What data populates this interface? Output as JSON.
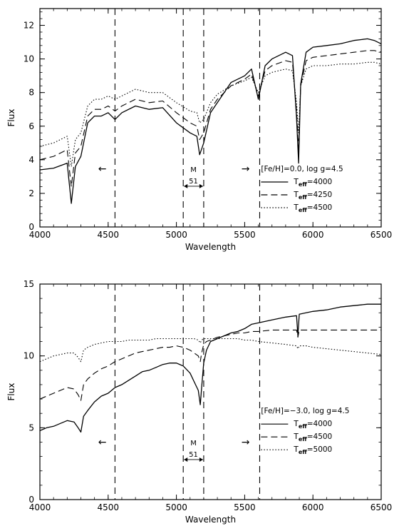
{
  "chart_data": [
    {
      "type": "line",
      "xlabel": "Wavelength",
      "ylabel": "Flux",
      "xlim": [
        4000,
        6500
      ],
      "ylim": [
        0,
        13
      ],
      "xticks": [
        "4000",
        "4500",
        "5000",
        "5500",
        "6000",
        "6500"
      ],
      "yticks": [
        "0",
        "2",
        "4",
        "6",
        "8",
        "10",
        "12"
      ],
      "legend_title": "[Fe/H]=0.0, log g=4.5",
      "legend_position": "center-right",
      "vlines": [
        4550,
        5050,
        5200,
        5610
      ],
      "annotations": {
        "left_arrow": "←",
        "right_arrow": "→",
        "band_name": "M",
        "band_width": "51"
      },
      "series": [
        {
          "name": "T_eff=4000",
          "label_sub": "eff",
          "label_value": "=4000",
          "style": "solid",
          "x": [
            4000,
            4100,
            4200,
            4230,
            4260,
            4300,
            4350,
            4400,
            4450,
            4500,
            4550,
            4600,
            4700,
            4800,
            4900,
            5000,
            5100,
            5150,
            5170,
            5200,
            5250,
            5300,
            5400,
            5500,
            5550,
            5600,
            5650,
            5700,
            5800,
            5850,
            5880,
            5895,
            5910,
            5950,
            6000,
            6100,
            6200,
            6300,
            6400,
            6450,
            6500
          ],
          "y": [
            3.4,
            3.5,
            3.8,
            1.4,
            3.6,
            4.2,
            6.2,
            6.6,
            6.6,
            6.8,
            6.4,
            6.8,
            7.2,
            7.0,
            7.1,
            6.2,
            5.6,
            5.4,
            4.3,
            5.0,
            6.8,
            7.4,
            8.6,
            9.0,
            9.4,
            7.6,
            9.6,
            10.0,
            10.4,
            10.2,
            6.5,
            3.8,
            8.5,
            10.4,
            10.7,
            10.8,
            10.9,
            11.1,
            11.2,
            11.1,
            10.9
          ]
        },
        {
          "name": "T_eff=4250",
          "label_sub": "eff",
          "label_value": "=4250",
          "style": "dashed",
          "x": [
            4000,
            4100,
            4200,
            4230,
            4260,
            4300,
            4350,
            4400,
            4450,
            4500,
            4550,
            4600,
            4700,
            4800,
            4900,
            5000,
            5100,
            5150,
            5170,
            5200,
            5250,
            5300,
            5400,
            5500,
            5550,
            5600,
            5650,
            5700,
            5800,
            5850,
            5880,
            5895,
            5910,
            5950,
            6000,
            6100,
            6200,
            6300,
            6400,
            6450,
            6500
          ],
          "y": [
            4.0,
            4.2,
            4.6,
            2.4,
            4.4,
            4.8,
            6.6,
            7.0,
            7.0,
            7.2,
            6.9,
            7.2,
            7.6,
            7.4,
            7.5,
            6.8,
            6.2,
            6.0,
            5.2,
            5.6,
            7.0,
            7.6,
            8.4,
            8.8,
            9.1,
            7.8,
            9.3,
            9.6,
            9.9,
            9.8,
            6.9,
            4.6,
            8.4,
            9.9,
            10.1,
            10.2,
            10.3,
            10.4,
            10.5,
            10.5,
            10.4
          ]
        },
        {
          "name": "T_eff=4500",
          "label_sub": "eff",
          "label_value": "=4500",
          "style": "dotted",
          "x": [
            4000,
            4100,
            4200,
            4230,
            4260,
            4300,
            4350,
            4400,
            4450,
            4500,
            4550,
            4600,
            4700,
            4800,
            4900,
            5000,
            5100,
            5150,
            5170,
            5200,
            5250,
            5300,
            5400,
            5500,
            5550,
            5600,
            5650,
            5700,
            5800,
            5850,
            5880,
            5895,
            5910,
            5950,
            6000,
            6100,
            6200,
            6300,
            6400,
            6450,
            6500
          ],
          "y": [
            4.8,
            5.0,
            5.4,
            3.6,
            5.2,
            5.6,
            7.2,
            7.6,
            7.6,
            7.8,
            7.6,
            7.8,
            8.2,
            8.0,
            8.0,
            7.4,
            6.9,
            6.8,
            6.2,
            6.4,
            7.4,
            7.9,
            8.4,
            8.7,
            8.9,
            8.0,
            9.0,
            9.2,
            9.4,
            9.3,
            7.4,
            5.6,
            8.4,
            9.4,
            9.6,
            9.6,
            9.7,
            9.7,
            9.8,
            9.8,
            9.7
          ]
        }
      ]
    },
    {
      "type": "line",
      "xlabel": "Wavelength",
      "ylabel": "Flux",
      "xlim": [
        4000,
        6500
      ],
      "ylim": [
        0,
        15
      ],
      "xticks": [
        "4000",
        "4500",
        "5000",
        "5500",
        "6000",
        "6500"
      ],
      "yticks": [
        "0",
        "5",
        "10",
        "15"
      ],
      "legend_title": "[Fe/H]=−3.0, log g=4.5",
      "legend_position": "center-right",
      "vlines": [
        4550,
        5050,
        5200,
        5610
      ],
      "annotations": {
        "left_arrow": "←",
        "right_arrow": "→",
        "band_name": "M",
        "band_width": "51"
      },
      "series": [
        {
          "name": "T_eff=4000",
          "label_sub": "eff",
          "label_value": "=4000",
          "style": "solid",
          "x": [
            4000,
            4050,
            4100,
            4150,
            4200,
            4250,
            4280,
            4300,
            4320,
            4350,
            4400,
            4450,
            4500,
            4550,
            4600,
            4650,
            4700,
            4750,
            4800,
            4850,
            4900,
            4950,
            5000,
            5050,
            5100,
            5130,
            5160,
            5175,
            5185,
            5200,
            5220,
            5250,
            5300,
            5350,
            5400,
            5450,
            5500,
            5550,
            5600,
            5700,
            5800,
            5880,
            5890,
            5900,
            5950,
            6000,
            6100,
            6200,
            6300,
            6400,
            6500
          ],
          "y": [
            4.8,
            5.0,
            5.1,
            5.3,
            5.5,
            5.4,
            5.0,
            4.7,
            5.8,
            6.2,
            6.8,
            7.2,
            7.4,
            7.8,
            8.0,
            8.3,
            8.6,
            8.9,
            9.0,
            9.2,
            9.4,
            9.5,
            9.5,
            9.3,
            8.8,
            8.2,
            7.6,
            6.6,
            7.8,
            9.5,
            10.4,
            11.0,
            11.2,
            11.4,
            11.6,
            11.7,
            11.9,
            12.2,
            12.3,
            12.5,
            12.7,
            12.8,
            11.4,
            12.9,
            13.0,
            13.1,
            13.2,
            13.4,
            13.5,
            13.6,
            13.6
          ]
        },
        {
          "name": "T_eff=4500",
          "label_sub": "eff",
          "label_value": "=4500",
          "style": "dashed",
          "x": [
            4000,
            4050,
            4100,
            4150,
            4200,
            4250,
            4280,
            4300,
            4320,
            4350,
            4400,
            4450,
            4500,
            4550,
            4600,
            4650,
            4700,
            4750,
            4800,
            4850,
            4900,
            4950,
            5000,
            5050,
            5100,
            5130,
            5160,
            5175,
            5185,
            5200,
            5220,
            5250,
            5300,
            5350,
            5400,
            5450,
            5500,
            5550,
            5600,
            5700,
            5800,
            5880,
            5890,
            5900,
            5950,
            6000,
            6100,
            6200,
            6300,
            6400,
            6500
          ],
          "y": [
            7.0,
            7.2,
            7.4,
            7.6,
            7.8,
            7.7,
            7.3,
            6.9,
            8.0,
            8.4,
            8.8,
            9.1,
            9.3,
            9.6,
            9.8,
            10.0,
            10.2,
            10.3,
            10.4,
            10.5,
            10.6,
            10.6,
            10.7,
            10.6,
            10.4,
            10.2,
            10.0,
            9.6,
            10.2,
            10.8,
            11.0,
            11.1,
            11.3,
            11.4,
            11.5,
            11.6,
            11.6,
            11.7,
            11.7,
            11.8,
            11.8,
            11.8,
            11.3,
            11.8,
            11.8,
            11.8,
            11.8,
            11.8,
            11.8,
            11.8,
            11.8
          ]
        },
        {
          "name": "T_eff=5000",
          "label_sub": "eff",
          "label_value": "=5000",
          "style": "dotted",
          "x": [
            4000,
            4050,
            4100,
            4150,
            4200,
            4250,
            4280,
            4300,
            4320,
            4350,
            4400,
            4450,
            4500,
            4550,
            4600,
            4650,
            4700,
            4750,
            4800,
            4850,
            4900,
            4950,
            5000,
            5050,
            5100,
            5130,
            5160,
            5175,
            5185,
            5200,
            5220,
            5250,
            5300,
            5350,
            5400,
            5450,
            5500,
            5550,
            5600,
            5700,
            5800,
            5880,
            5890,
            5900,
            5950,
            6000,
            6100,
            6200,
            6300,
            6400,
            6500
          ],
          "y": [
            9.6,
            9.8,
            10.0,
            10.1,
            10.2,
            10.2,
            9.9,
            9.6,
            10.4,
            10.6,
            10.8,
            10.9,
            11.0,
            11.0,
            11.0,
            11.1,
            11.1,
            11.1,
            11.1,
            11.2,
            11.2,
            11.2,
            11.2,
            11.2,
            11.2,
            11.2,
            11.1,
            10.9,
            11.1,
            11.2,
            11.2,
            11.2,
            11.2,
            11.2,
            11.2,
            11.2,
            11.1,
            11.1,
            11.0,
            10.9,
            10.8,
            10.7,
            10.5,
            10.7,
            10.7,
            10.6,
            10.5,
            10.4,
            10.3,
            10.2,
            10.1
          ]
        }
      ]
    }
  ]
}
